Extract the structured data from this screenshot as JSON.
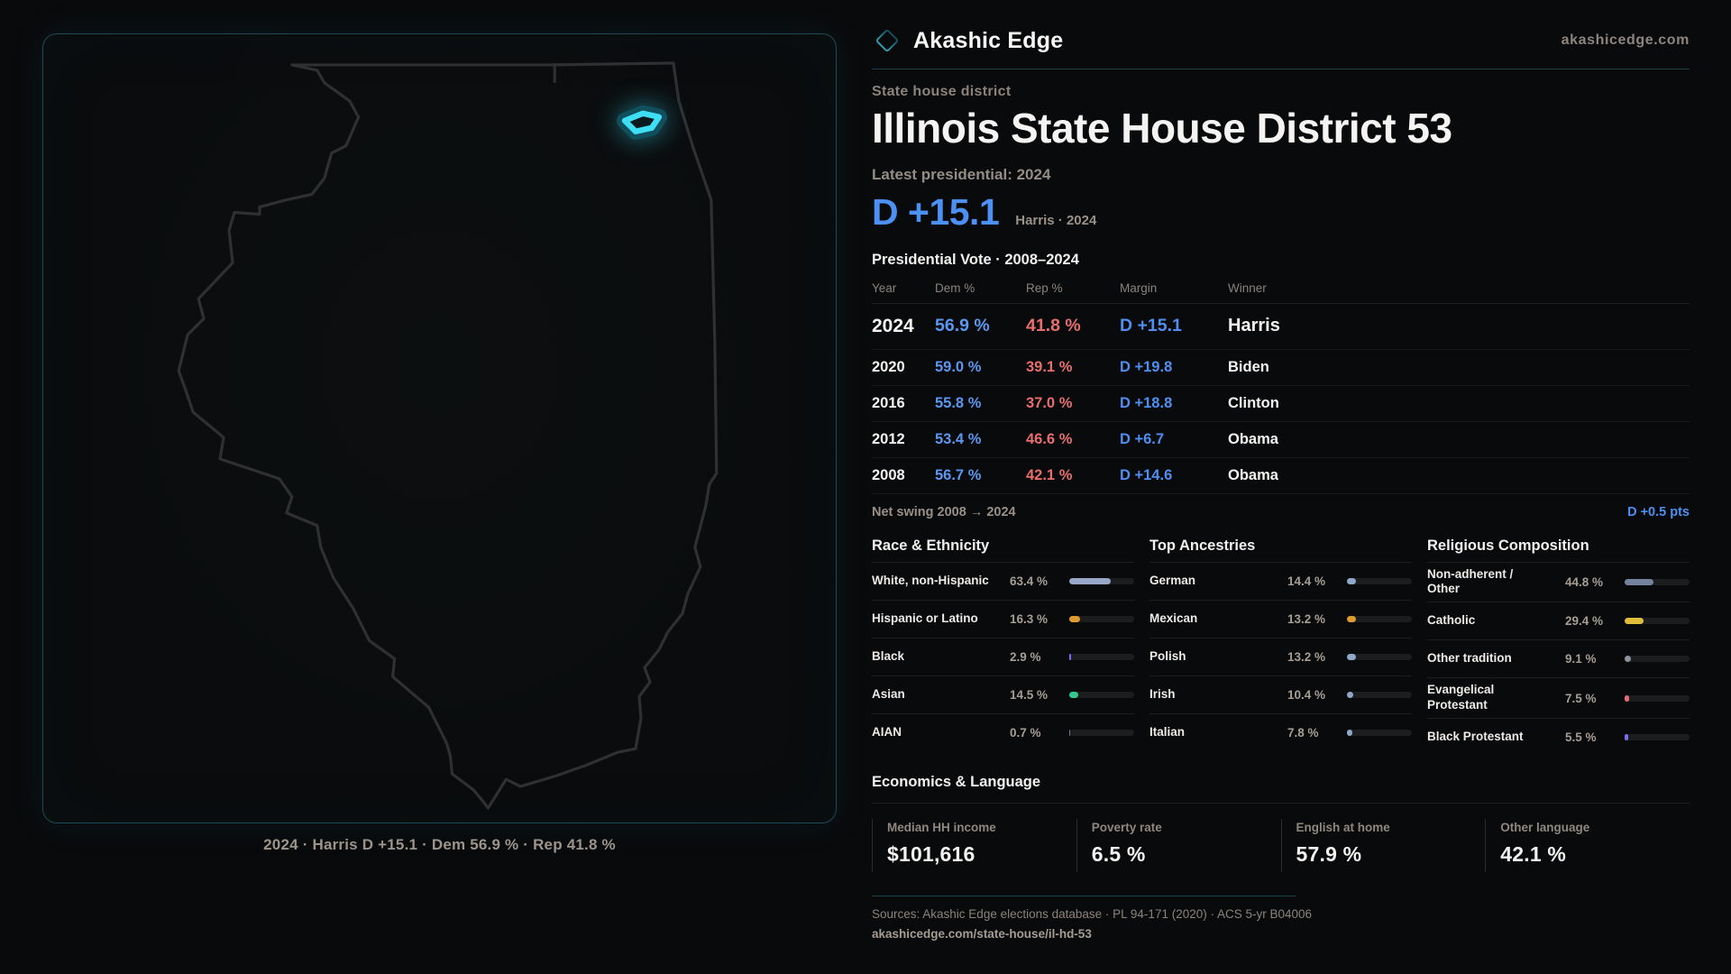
{
  "brand": {
    "name": "Akashic Edge",
    "domain": "akashicedge.com"
  },
  "page": {
    "kicker": "State house district",
    "title": "Illinois State House District 53",
    "latest_label": "Latest presidential: 2024",
    "headline_margin": "D +15.1",
    "headline_context": "Harris · 2024"
  },
  "map": {
    "caption": "2024 · Harris D +15.1 · Dem 56.9 % · Rep 41.8 %"
  },
  "colors": {
    "dem_blue": "#4b90f2",
    "rep_red": "#e86e6e",
    "district_cyan": "#3edef5"
  },
  "table": {
    "title": "Presidential Vote · 2008–2024",
    "columns": [
      "Year",
      "Dem %",
      "Rep %",
      "Margin",
      "Winner"
    ],
    "rows": [
      {
        "year": "2024",
        "dem": "56.9 %",
        "rep": "41.8 %",
        "margin": "D +15.1",
        "winner": "Harris"
      },
      {
        "year": "2020",
        "dem": "59.0 %",
        "rep": "39.1 %",
        "margin": "D +19.8",
        "winner": "Biden"
      },
      {
        "year": "2016",
        "dem": "55.8 %",
        "rep": "37.0 %",
        "margin": "D +18.8",
        "winner": "Clinton"
      },
      {
        "year": "2012",
        "dem": "53.4 %",
        "rep": "46.6 %",
        "margin": "D +6.7",
        "winner": "Obama"
      },
      {
        "year": "2008",
        "dem": "56.7 %",
        "rep": "42.1 %",
        "margin": "D +14.6",
        "winner": "Obama"
      }
    ],
    "net_swing_label": "Net swing 2008 → 2024",
    "net_swing_value": "D +0.5 pts"
  },
  "demographics": [
    {
      "title": "Race & Ethnicity",
      "rows": [
        {
          "label": "White, non-Hispanic",
          "value": "63.4 %",
          "pct": 63.4,
          "color": "#96a7c7"
        },
        {
          "label": "Hispanic or Latino",
          "value": "16.3 %",
          "pct": 16.3,
          "color": "#dd9b30"
        },
        {
          "label": "Black",
          "value": "2.9 %",
          "pct": 2.9,
          "color": "#7a68ee"
        },
        {
          "label": "Asian",
          "value": "14.5 %",
          "pct": 14.5,
          "color": "#36c690"
        },
        {
          "label": "AIAN",
          "value": "0.7 %",
          "pct": 0.7,
          "color": "#6b7280"
        }
      ]
    },
    {
      "title": "Top Ancestries",
      "rows": [
        {
          "label": "German",
          "value": "14.4 %",
          "pct": 14.4,
          "color": "#8fa8c8"
        },
        {
          "label": "Mexican",
          "value": "13.2 %",
          "pct": 13.2,
          "color": "#dd9b30"
        },
        {
          "label": "Polish",
          "value": "13.2 %",
          "pct": 13.2,
          "color": "#8fa8c8"
        },
        {
          "label": "Irish",
          "value": "10.4 %",
          "pct": 10.4,
          "color": "#8fa8c8"
        },
        {
          "label": "Italian",
          "value": "7.8 %",
          "pct": 7.8,
          "color": "#8fa8c8"
        }
      ]
    },
    {
      "title": "Religious Composition",
      "rows": [
        {
          "label": "Non-adherent / Other",
          "value": "44.8 %",
          "pct": 44.8,
          "color": "#74829e"
        },
        {
          "label": "Catholic",
          "value": "29.4 %",
          "pct": 29.4,
          "color": "#e0bd3a"
        },
        {
          "label": "Other tradition",
          "value": "9.1 %",
          "pct": 9.1,
          "color": "#8d939c"
        },
        {
          "label": "Evangelical Protestant",
          "value": "7.5 %",
          "pct": 7.5,
          "color": "#e06e76"
        },
        {
          "label": "Black Protestant",
          "value": "5.5 %",
          "pct": 5.5,
          "color": "#7a6cf0"
        }
      ]
    }
  ],
  "economics": {
    "title": "Economics & Language",
    "stats": [
      {
        "label": "Median HH income",
        "value": "$101,616"
      },
      {
        "label": "Poverty rate",
        "value": "6.5 %"
      },
      {
        "label": "English at home",
        "value": "57.9 %"
      },
      {
        "label": "Other language",
        "value": "42.1 %"
      }
    ]
  },
  "footer": {
    "sources": "Sources: Akashic Edge elections database · PL 94-171 (2020) · ACS 5-yr B04006",
    "url": "akashicedge.com/state-house/il-hd-53"
  },
  "chart_data": [
    {
      "type": "table",
      "title": "Presidential Vote · 2008–2024",
      "columns": [
        "Year",
        "Dem %",
        "Rep %",
        "Margin",
        "Winner"
      ],
      "rows": [
        [
          "2024",
          56.9,
          41.8,
          "D +15.1",
          "Harris"
        ],
        [
          "2020",
          59.0,
          39.1,
          "D +19.8",
          "Biden"
        ],
        [
          "2016",
          55.8,
          37.0,
          "D +18.8",
          "Clinton"
        ],
        [
          "2012",
          53.4,
          46.6,
          "D +6.7",
          "Obama"
        ],
        [
          "2008",
          56.7,
          42.1,
          "D +14.6",
          "Obama"
        ]
      ]
    },
    {
      "type": "bar",
      "title": "Race & Ethnicity",
      "categories": [
        "White, non-Hispanic",
        "Hispanic or Latino",
        "Black",
        "Asian",
        "AIAN"
      ],
      "values": [
        63.4,
        16.3,
        2.9,
        14.5,
        0.7
      ],
      "unit": "%",
      "xlim": [
        0,
        100
      ]
    },
    {
      "type": "bar",
      "title": "Top Ancestries",
      "categories": [
        "German",
        "Mexican",
        "Polish",
        "Irish",
        "Italian"
      ],
      "values": [
        14.4,
        13.2,
        13.2,
        10.4,
        7.8
      ],
      "unit": "%",
      "xlim": [
        0,
        100
      ]
    },
    {
      "type": "bar",
      "title": "Religious Composition",
      "categories": [
        "Non-adherent / Other",
        "Catholic",
        "Other tradition",
        "Evangelical Protestant",
        "Black Protestant"
      ],
      "values": [
        44.8,
        29.4,
        9.1,
        7.5,
        5.5
      ],
      "unit": "%",
      "xlim": [
        0,
        100
      ]
    }
  ]
}
